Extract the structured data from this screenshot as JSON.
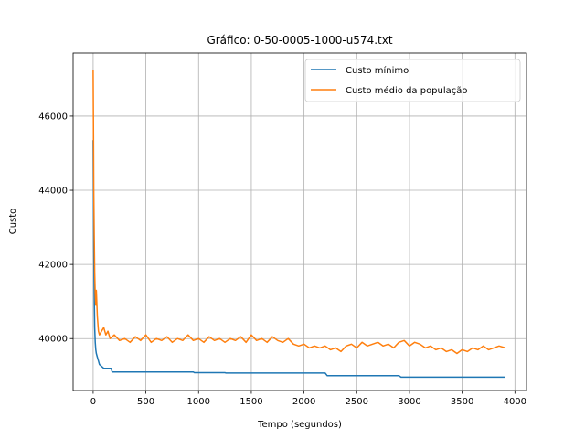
{
  "chart_data": {
    "type": "line",
    "title": "Gráfico: 0-50-0005-1000-u574.txt",
    "xlabel": "Tempo (segundos)",
    "ylabel": "Custo",
    "xlim": [
      -190,
      4110
    ],
    "ylim": [
      38600,
      47700
    ],
    "xticks": [
      0,
      500,
      1000,
      1500,
      2000,
      2500,
      3000,
      3500,
      4000
    ],
    "yticks": [
      40000,
      42000,
      44000,
      46000
    ],
    "grid": true,
    "legend": "top-right",
    "series": [
      {
        "name": "Custo mínimo",
        "color": "#1f77b4",
        "x": [
          0,
          5,
          10,
          15,
          20,
          25,
          30,
          40,
          50,
          60,
          80,
          100,
          150,
          170,
          180,
          300,
          600,
          950,
          960,
          1250,
          1260,
          1800,
          2200,
          2220,
          2900,
          2920,
          3910
        ],
        "y": [
          45350,
          42500,
          41200,
          40300,
          39900,
          39700,
          39600,
          39500,
          39400,
          39300,
          39250,
          39200,
          39200,
          39200,
          39100,
          39100,
          39100,
          39100,
          39080,
          39080,
          39070,
          39070,
          39070,
          39000,
          39000,
          38960,
          38960
        ]
      },
      {
        "name": "Custo médio da população",
        "color": "#ff7f0e",
        "x": [
          0,
          3,
          6,
          10,
          15,
          20,
          25,
          30,
          40,
          50,
          60,
          80,
          100,
          120,
          140,
          160,
          200,
          250,
          300,
          350,
          400,
          450,
          500,
          550,
          600,
          650,
          700,
          750,
          800,
          850,
          900,
          950,
          1000,
          1050,
          1100,
          1150,
          1200,
          1250,
          1300,
          1350,
          1400,
          1450,
          1500,
          1550,
          1600,
          1650,
          1700,
          1750,
          1800,
          1850,
          1900,
          1950,
          2000,
          2050,
          2100,
          2150,
          2200,
          2250,
          2300,
          2350,
          2400,
          2450,
          2500,
          2550,
          2600,
          2650,
          2700,
          2750,
          2800,
          2850,
          2900,
          2950,
          3000,
          3050,
          3100,
          3150,
          3200,
          3250,
          3300,
          3350,
          3400,
          3450,
          3500,
          3550,
          3600,
          3650,
          3700,
          3750,
          3800,
          3850,
          3910
        ],
        "y": [
          47250,
          45500,
          44000,
          42800,
          41800,
          41200,
          40900,
          41300,
          40600,
          40200,
          40100,
          40200,
          40300,
          40100,
          40200,
          40000,
          40100,
          39950,
          40000,
          39900,
          40050,
          39950,
          40100,
          39900,
          40000,
          39950,
          40050,
          39900,
          40000,
          39950,
          40100,
          39950,
          40000,
          39900,
          40050,
          39950,
          40000,
          39900,
          40000,
          39950,
          40050,
          39900,
          40100,
          39950,
          40000,
          39900,
          40050,
          39950,
          39900,
          40000,
          39850,
          39800,
          39850,
          39750,
          39800,
          39750,
          39800,
          39700,
          39750,
          39650,
          39800,
          39850,
          39750,
          39900,
          39800,
          39850,
          39900,
          39800,
          39850,
          39750,
          39900,
          39950,
          39800,
          39900,
          39850,
          39750,
          39800,
          39700,
          39750,
          39650,
          39700,
          39600,
          39700,
          39650,
          39750,
          39700,
          39800,
          39700,
          39750,
          39800,
          39750
        ]
      }
    ]
  }
}
